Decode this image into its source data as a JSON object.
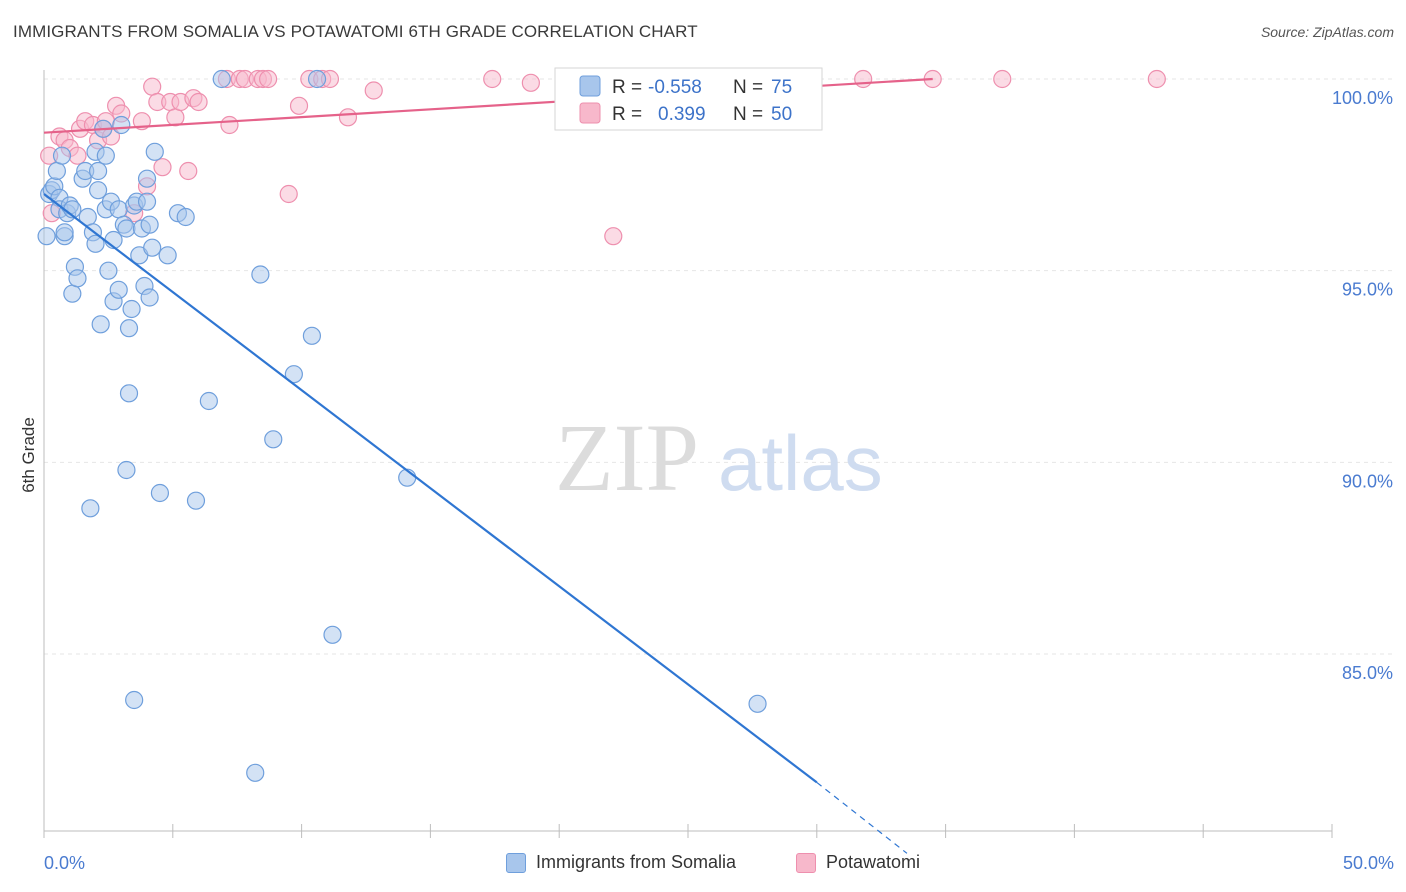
{
  "header": {
    "title": "IMMIGRANTS FROM SOMALIA VS POTAWATOMI 6TH GRADE CORRELATION CHART",
    "source": "Source: ZipAtlas.com"
  },
  "watermark": {
    "zip": "ZIP",
    "atlas": "atlas"
  },
  "legend": {
    "r_label": "R =",
    "n_label": "N =",
    "rows": [
      {
        "r": "-0.558",
        "n": "75"
      },
      {
        "r": "0.399",
        "n": "50"
      }
    ]
  },
  "bottom_legend": {
    "items": [
      {
        "label": "Immigrants from Somalia"
      },
      {
        "label": "Potawatomi"
      }
    ]
  },
  "colors": {
    "somalia_fill": "#a8c6ec",
    "somalia_stroke": "#6f9fdc",
    "somalia_line": "#2f76d2",
    "potawatomi_fill": "#f7b8cb",
    "potawatomi_stroke": "#ee8fae",
    "potawatomi_line": "#e5628a",
    "grid": "#e6e6e6",
    "tick_text": "#4a7bd0"
  },
  "chart_data": {
    "type": "scatter",
    "title": "IMMIGRANTS FROM SOMALIA VS POTAWATOMI 6TH GRADE CORRELATION CHART",
    "xlabel": "",
    "ylabel": "6th Grade",
    "xlim": [
      0,
      50
    ],
    "ylim": [
      80.5,
      100.7
    ],
    "x_tick_labels": [
      {
        "value": 0,
        "label": "0.0%"
      },
      {
        "value": 50,
        "label": "50.0%"
      }
    ],
    "y_tick_labels": [
      {
        "value": 100,
        "label": "100.0%"
      },
      {
        "value": 95,
        "label": "95.0%"
      },
      {
        "value": 90,
        "label": "90.0%"
      },
      {
        "value": 85,
        "label": "85.0%"
      }
    ],
    "series": [
      {
        "name": "Immigrants from Somalia",
        "r": -0.558,
        "n": 75,
        "trend": {
          "x": [
            0,
            30,
            33.5
          ],
          "y": [
            97.0,
            81.65,
            79.8
          ]
        },
        "points": [
          [
            0.1,
            95.9
          ],
          [
            0.2,
            97.0
          ],
          [
            0.3,
            97.1
          ],
          [
            0.4,
            97.2
          ],
          [
            0.5,
            97.6
          ],
          [
            0.6,
            96.9
          ],
          [
            0.6,
            96.6
          ],
          [
            0.7,
            98.0
          ],
          [
            0.8,
            95.9
          ],
          [
            0.8,
            96.0
          ],
          [
            0.9,
            96.5
          ],
          [
            1.0,
            96.7
          ],
          [
            1.1,
            96.6
          ],
          [
            1.1,
            94.4
          ],
          [
            1.2,
            95.1
          ],
          [
            1.3,
            94.8
          ],
          [
            1.5,
            97.4
          ],
          [
            1.6,
            97.6
          ],
          [
            1.7,
            96.4
          ],
          [
            1.8,
            88.8
          ],
          [
            1.9,
            96.0
          ],
          [
            2.0,
            98.1
          ],
          [
            2.0,
            95.7
          ],
          [
            2.1,
            97.1
          ],
          [
            2.1,
            97.6
          ],
          [
            2.2,
            93.6
          ],
          [
            2.3,
            98.7
          ],
          [
            2.4,
            96.6
          ],
          [
            2.4,
            98.0
          ],
          [
            2.5,
            95.0
          ],
          [
            2.6,
            96.8
          ],
          [
            2.7,
            95.8
          ],
          [
            2.7,
            94.2
          ],
          [
            2.9,
            94.5
          ],
          [
            2.9,
            96.6
          ],
          [
            3.0,
            98.8
          ],
          [
            3.1,
            96.2
          ],
          [
            3.2,
            96.1
          ],
          [
            3.2,
            89.8
          ],
          [
            3.3,
            91.8
          ],
          [
            3.3,
            93.5
          ],
          [
            3.4,
            94.0
          ],
          [
            3.5,
            96.7
          ],
          [
            3.5,
            83.8
          ],
          [
            3.6,
            96.8
          ],
          [
            3.7,
            95.4
          ],
          [
            3.8,
            96.1
          ],
          [
            3.9,
            94.6
          ],
          [
            4.0,
            97.4
          ],
          [
            4.0,
            96.8
          ],
          [
            4.1,
            94.3
          ],
          [
            4.1,
            96.2
          ],
          [
            4.2,
            95.6
          ],
          [
            4.3,
            98.1
          ],
          [
            4.5,
            89.2
          ],
          [
            4.8,
            95.4
          ],
          [
            5.2,
            96.5
          ],
          [
            5.5,
            96.4
          ],
          [
            5.9,
            89.0
          ],
          [
            6.4,
            91.6
          ],
          [
            6.9,
            100.0
          ],
          [
            8.2,
            81.9
          ],
          [
            8.4,
            94.9
          ],
          [
            8.9,
            90.6
          ],
          [
            9.7,
            92.3
          ],
          [
            10.4,
            93.3
          ],
          [
            10.6,
            100.0
          ],
          [
            11.2,
            85.5
          ],
          [
            14.1,
            89.6
          ],
          [
            27.7,
            83.7
          ]
        ]
      },
      {
        "name": "Potawatomi",
        "r": 0.399,
        "n": 50,
        "trend": {
          "x": [
            0,
            34.5
          ],
          "y": [
            98.6,
            100.0
          ]
        },
        "points": [
          [
            0.2,
            98.0
          ],
          [
            0.3,
            96.5
          ],
          [
            0.6,
            98.5
          ],
          [
            0.8,
            98.4
          ],
          [
            1.0,
            98.2
          ],
          [
            1.3,
            98.0
          ],
          [
            1.4,
            98.7
          ],
          [
            1.6,
            98.9
          ],
          [
            1.9,
            98.8
          ],
          [
            2.1,
            98.4
          ],
          [
            2.3,
            98.7
          ],
          [
            2.4,
            98.9
          ],
          [
            2.6,
            98.5
          ],
          [
            2.8,
            99.3
          ],
          [
            3.0,
            99.1
          ],
          [
            3.5,
            96.5
          ],
          [
            3.8,
            98.9
          ],
          [
            4.0,
            97.2
          ],
          [
            4.2,
            99.8
          ],
          [
            4.4,
            99.4
          ],
          [
            4.6,
            97.7
          ],
          [
            4.9,
            99.4
          ],
          [
            5.1,
            99.0
          ],
          [
            5.3,
            99.4
          ],
          [
            5.6,
            97.6
          ],
          [
            5.8,
            99.5
          ],
          [
            6.0,
            99.4
          ],
          [
            7.1,
            100.0
          ],
          [
            7.2,
            98.8
          ],
          [
            7.6,
            100.0
          ],
          [
            7.8,
            100.0
          ],
          [
            8.3,
            100.0
          ],
          [
            8.5,
            100.0
          ],
          [
            8.7,
            100.0
          ],
          [
            9.5,
            97.0
          ],
          [
            9.9,
            99.3
          ],
          [
            10.3,
            100.0
          ],
          [
            10.8,
            100.0
          ],
          [
            11.1,
            100.0
          ],
          [
            11.8,
            99.0
          ],
          [
            12.8,
            99.7
          ],
          [
            17.4,
            100.0
          ],
          [
            18.9,
            99.9
          ],
          [
            22.1,
            95.9
          ],
          [
            31.8,
            100.0
          ],
          [
            34.5,
            100.0
          ],
          [
            37.2,
            100.0
          ],
          [
            43.2,
            100.0
          ]
        ]
      }
    ]
  }
}
